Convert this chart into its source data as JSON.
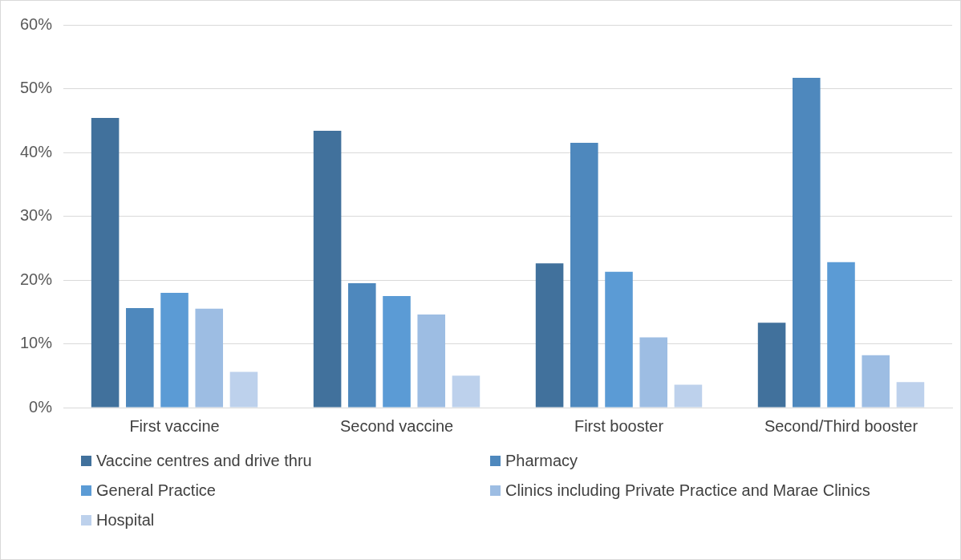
{
  "chart_data": {
    "type": "bar",
    "categories": [
      "First vaccine",
      "Second vaccine",
      "First booster",
      "Second/Third booster"
    ],
    "series": [
      {
        "name": "Vaccine centres and drive thru",
        "color": "#41719c",
        "values": [
          45.4,
          43.4,
          22.6,
          13.3
        ]
      },
      {
        "name": "Pharmacy",
        "color": "#4e88bd",
        "values": [
          15.6,
          19.5,
          41.5,
          51.7
        ]
      },
      {
        "name": "General Practice",
        "color": "#5b9bd5",
        "values": [
          18.0,
          17.5,
          21.3,
          22.8
        ]
      },
      {
        "name": "Clinics including Private Practice and Marae Clinics",
        "color": "#9dbde3",
        "values": [
          15.5,
          14.6,
          11.0,
          8.2
        ]
      },
      {
        "name": "Hospital",
        "color": "#bdd1ec",
        "values": [
          5.6,
          5.0,
          3.6,
          4.0
        ]
      }
    ],
    "ylim": [
      0,
      60
    ],
    "yticks": [
      {
        "value": 0,
        "label": "0%"
      },
      {
        "value": 10,
        "label": "10%"
      },
      {
        "value": 20,
        "label": "20%"
      },
      {
        "value": 30,
        "label": "30%"
      },
      {
        "value": 40,
        "label": "40%"
      },
      {
        "value": 50,
        "label": "50%"
      },
      {
        "value": 60,
        "label": "60%"
      }
    ],
    "grid": "y",
    "legend": "bottom"
  }
}
